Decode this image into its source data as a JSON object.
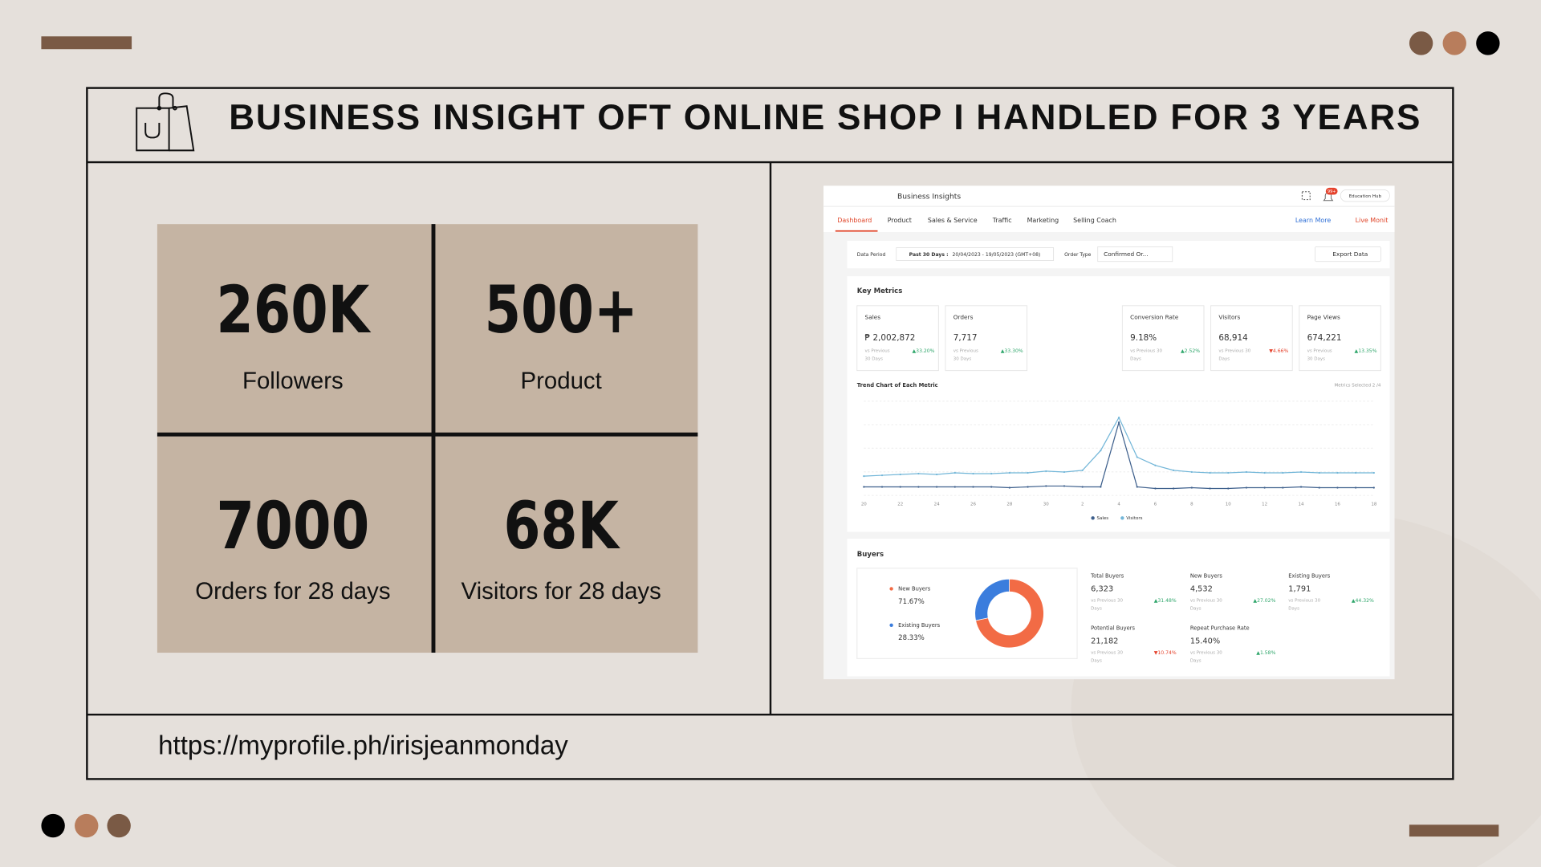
{
  "title": "BUSINESS INSIGHT OFT ONLINE SHOP I HANDLED FOR 3 YEARS",
  "stats": [
    {
      "value": "260K",
      "label": "Followers"
    },
    {
      "value": "500+",
      "label": "Product"
    },
    {
      "value": "7000",
      "label": "Orders for 28 days"
    },
    {
      "value": "68K",
      "label": "Visitors for 28 days"
    }
  ],
  "url": "https://myprofile.ph/irisjeanmonday",
  "dashboard": {
    "header": "Business Insights",
    "badge": "99+",
    "education_hub": "Education Hub",
    "tabs": [
      "Dashboard",
      "Product",
      "Sales & Service",
      "Traffic",
      "Marketing",
      "Selling Coach"
    ],
    "links": [
      "Learn More",
      "Live Monit"
    ],
    "filters": {
      "data_period_label": "Data Period",
      "period": "Past 30 Days :",
      "range": "20/04/2023 - 19/05/2023 (GMT+08)",
      "order_type_label": "Order Type",
      "order_type": "Confirmed Or...",
      "export": "Export Data"
    },
    "key_metrics": {
      "title": "Key Metrics",
      "metrics": [
        {
          "name": "Sales",
          "value": "₱ 2,002,872",
          "compare": [
            "vs Previous",
            "30 Days"
          ],
          "change": "▲33.20%"
        },
        {
          "name": "Orders",
          "value": "7,717",
          "compare": [
            "vs Previous",
            "30 Days"
          ],
          "change": "▲33.30%"
        },
        {
          "name": "Conversion Rate",
          "value": "9.18%",
          "compare": [
            "vs Previous 30",
            "Days"
          ],
          "change": "▲2.52%"
        },
        {
          "name": "Visitors",
          "value": "68,914",
          "compare": [
            "vs Previous 30",
            "Days"
          ],
          "change": "▼4.66%"
        },
        {
          "name": "Page Views",
          "value": "674,221",
          "compare": [
            "vs Previous",
            "30 Days"
          ],
          "change": "▲13.35%"
        }
      ]
    },
    "trend": {
      "type": "line",
      "title": "Trend Chart of Each Metric",
      "note": "Metrics Selected 2 /4",
      "categories": [
        "20",
        null,
        "22",
        null,
        "24",
        null,
        "26",
        null,
        "28",
        null,
        "30",
        null,
        "2",
        null,
        "4",
        null,
        "6",
        null,
        "8",
        null,
        "10",
        null,
        "12",
        null,
        "14",
        null,
        "16",
        null,
        "18"
      ],
      "ylim": [
        0,
        100
      ],
      "series": [
        {
          "name": "Sales",
          "color": "#3d5f8c",
          "values": [
            8,
            8,
            8,
            8,
            8,
            8,
            8,
            8,
            7,
            8,
            9,
            9,
            8,
            8,
            86,
            8,
            6,
            6,
            7,
            6,
            6,
            7,
            7,
            7,
            8,
            7,
            7,
            7,
            7
          ]
        },
        {
          "name": "Visitors",
          "color": "#72b6d8",
          "values": [
            21,
            22,
            23,
            24,
            23,
            25,
            24,
            24,
            25,
            25,
            27,
            26,
            28,
            52,
            92,
            44,
            34,
            28,
            26,
            25,
            25,
            26,
            25,
            25,
            26,
            25,
            25,
            25,
            25
          ]
        }
      ]
    },
    "buyers": {
      "title": "Buyers",
      "legend": [
        {
          "name": "New Buyers",
          "value": 71.67,
          "value_label": "71.67%",
          "color": "#f26b45"
        },
        {
          "name": "Existing Buyers",
          "value": 28.33,
          "value_label": "28.33%",
          "color": "#3b7ddd"
        }
      ],
      "stats": [
        {
          "name": "Total Buyers",
          "value": "6,323",
          "compare": [
            "vs Previous 30",
            "Days"
          ],
          "change": "▲31.48%"
        },
        {
          "name": "New Buyers",
          "value": "4,532",
          "compare": [
            "vs Previous 30",
            "Days"
          ],
          "change": "▲27.02%"
        },
        {
          "name": "Existing Buyers",
          "value": "1,791",
          "compare": [
            "vs Previous 30",
            "Days"
          ],
          "change": "▲44.32%"
        },
        {
          "name": "Potential Buyers",
          "value": "21,182",
          "compare": [
            "vs Previous 30",
            "Days"
          ],
          "change": "▼10.74%"
        },
        {
          "name": "Repeat Purchase Rate",
          "value": "15.40%",
          "compare": [
            "vs Previous 30",
            "Days"
          ],
          "change": "▲1.58%"
        }
      ]
    }
  }
}
